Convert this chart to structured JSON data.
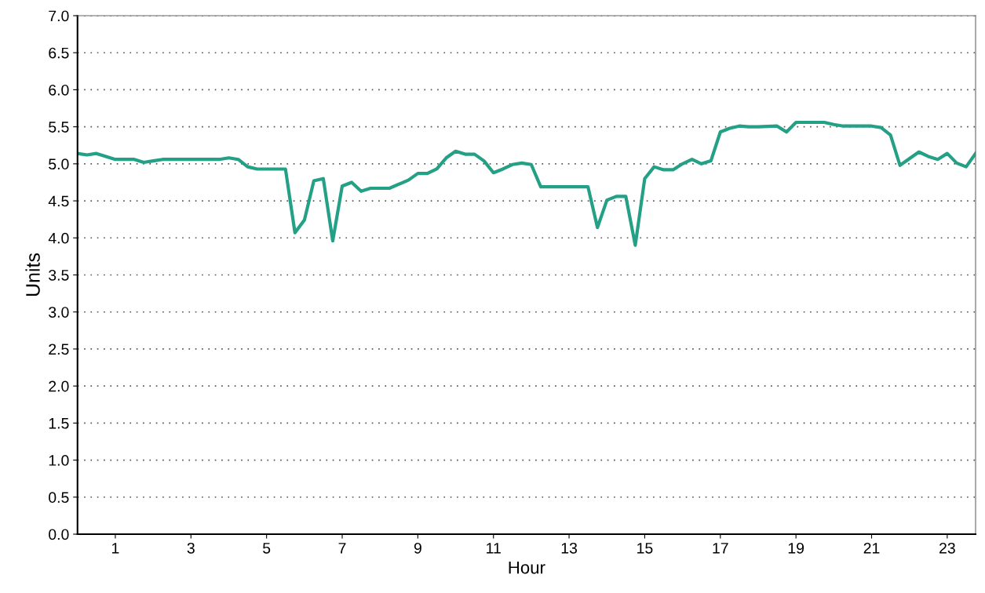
{
  "chart_data": {
    "type": "line",
    "xlabel": "Hour",
    "ylabel": "Units",
    "x": [
      0,
      0.25,
      0.5,
      1.0,
      1.5,
      1.75,
      2.0,
      2.25,
      3.75,
      4.0,
      4.25,
      4.5,
      4.75,
      5.5,
      5.75,
      6.0,
      6.25,
      6.5,
      6.75,
      7.0,
      7.25,
      7.5,
      7.75,
      8.25,
      8.75,
      9.0,
      9.25,
      9.5,
      9.75,
      10.0,
      10.25,
      10.5,
      10.75,
      11.0,
      11.25,
      11.5,
      11.75,
      12.0,
      12.25,
      13.5,
      13.75,
      14.0,
      14.25,
      14.5,
      14.75,
      15.0,
      15.25,
      15.5,
      15.75,
      16.0,
      16.25,
      16.5,
      16.75,
      17.0,
      17.25,
      17.5,
      17.75,
      18.0,
      18.5,
      18.75,
      19.0,
      19.75,
      20.0,
      20.25,
      21.0,
      21.25,
      21.5,
      21.75,
      22.0,
      22.25,
      22.5,
      22.75,
      23.0,
      23.25,
      23.5,
      23.75
    ],
    "series": [
      {
        "color": "#23a085",
        "values": [
          5.14,
          5.12,
          5.14,
          5.06,
          5.06,
          5.02,
          5.04,
          5.06,
          5.06,
          5.08,
          5.06,
          4.96,
          4.93,
          4.93,
          4.07,
          4.24,
          4.77,
          4.8,
          3.96,
          4.7,
          4.75,
          4.63,
          4.67,
          4.67,
          4.78,
          4.87,
          4.87,
          4.93,
          5.08,
          5.17,
          5.13,
          5.13,
          5.04,
          4.88,
          4.93,
          4.99,
          5.01,
          4.99,
          4.69,
          4.69,
          4.14,
          4.51,
          4.56,
          4.56,
          3.9,
          4.8,
          4.96,
          4.92,
          4.92,
          5.0,
          5.06,
          5.0,
          5.04,
          5.43,
          5.48,
          5.51,
          5.5,
          5.5,
          5.51,
          5.43,
          5.56,
          5.56,
          5.53,
          5.51,
          5.51,
          5.49,
          5.39,
          4.98,
          5.07,
          5.16,
          5.1,
          5.06,
          5.14,
          5.01,
          4.96,
          5.14
        ]
      }
    ],
    "xlim": [
      0,
      23.75
    ],
    "xticks": [
      1,
      3,
      5,
      7,
      9,
      11,
      13,
      15,
      17,
      19,
      21,
      23
    ],
    "ylim": [
      0,
      7
    ],
    "yticks": [
      {
        "value": 0,
        "label": "0.0"
      },
      0.5,
      {
        "value": 1,
        "label": "1.0"
      },
      1.5,
      {
        "value": 2,
        "label": "2.0"
      },
      2.5,
      {
        "value": 3,
        "label": "3.0"
      },
      3.5,
      {
        "value": 4,
        "label": "4.0"
      },
      4.5,
      {
        "value": 5,
        "label": "5.0"
      },
      5.5,
      {
        "value": 6,
        "label": "6.0"
      },
      6.5,
      {
        "value": 7,
        "label": "7.0"
      }
    ],
    "grid": "y",
    "line_style": "solid"
  }
}
